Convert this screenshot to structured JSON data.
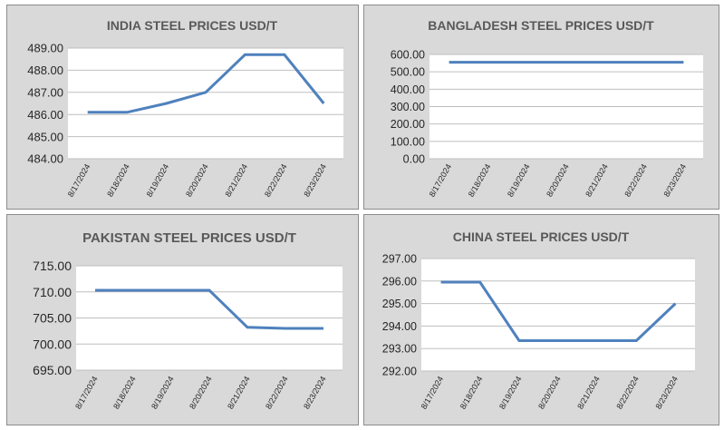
{
  "chart_data": [
    {
      "type": "line",
      "title": "INDIA STEEL PRICES USD/T",
      "categories": [
        "8/17/2024",
        "8/18/2024",
        "8/19/2024",
        "8/20/2024",
        "8/21/2024",
        "8/22/2024",
        "8/23/2024"
      ],
      "series": [
        {
          "values": [
            486.1,
            486.1,
            486.5,
            487.0,
            488.7,
            488.7,
            486.5
          ]
        }
      ],
      "yticks": [
        "489.00",
        "488.00",
        "487.00",
        "486.00",
        "485.00",
        "484.00"
      ],
      "ylim": [
        484,
        489
      ],
      "grid": true,
      "color": "#4f81bd"
    },
    {
      "type": "line",
      "title": "BANGLADESH STEEL PRICES USD/T",
      "categories": [
        "8/17/2024",
        "8/18/2024",
        "8/19/2024",
        "8/20/2024",
        "8/21/2024",
        "8/22/2024",
        "8/23/2024"
      ],
      "series": [
        {
          "values": [
            555,
            555,
            555,
            555,
            555,
            555,
            555
          ]
        }
      ],
      "yticks": [
        "600.00",
        "500.00",
        "400.00",
        "300.00",
        "200.00",
        "100.00",
        "0.00"
      ],
      "ylim": [
        0,
        600
      ],
      "grid": true,
      "color": "#4f81bd"
    },
    {
      "type": "line",
      "title": "PAKISTAN STEEL PRICES USD/T",
      "categories": [
        "8/17/2024",
        "8/18/2024",
        "8/19/2024",
        "8/20/2024",
        "8/21/2024",
        "8/22/2024",
        "8/23/2024"
      ],
      "series": [
        {
          "values": [
            710.3,
            710.3,
            710.3,
            710.3,
            703.2,
            703.0,
            703.0
          ]
        }
      ],
      "yticks": [
        "715.00",
        "710.00",
        "705.00",
        "700.00",
        "695.00"
      ],
      "ylim": [
        695,
        715
      ],
      "grid": true,
      "color": "#4f81bd"
    },
    {
      "type": "line",
      "title": "CHINA STEEL PRICES USD/T",
      "categories": [
        "8/17/2024",
        "8/18/2024",
        "8/19/2024",
        "8/20/2024",
        "8/21/2024",
        "8/22/2024",
        "8/23/2024"
      ],
      "series": [
        {
          "values": [
            295.95,
            295.95,
            293.35,
            293.35,
            293.35,
            293.35,
            295.0
          ]
        }
      ],
      "yticks": [
        "297.00",
        "296.00",
        "295.00",
        "294.00",
        "293.00",
        "292.00"
      ],
      "ylim": [
        292,
        297
      ],
      "grid": true,
      "color": "#4f81bd"
    }
  ]
}
